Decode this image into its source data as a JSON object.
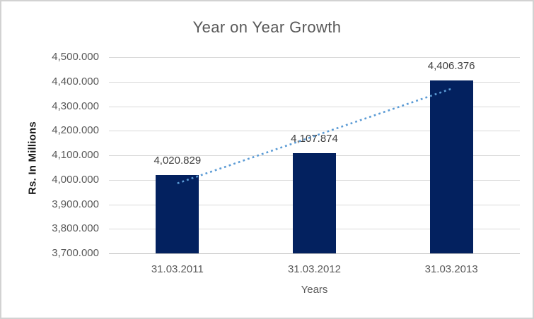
{
  "chart_data": {
    "type": "bar",
    "title": "Year on Year Growth",
    "xlabel": "Years",
    "ylabel": "Rs. In Millions",
    "categories": [
      "31.03.2011",
      "31.03.2012",
      "31.03.2013"
    ],
    "values": [
      4020.829,
      4107.874,
      4406.376
    ],
    "value_labels": [
      "4,020.829",
      "4,107.874",
      "4,406.376"
    ],
    "ylim": [
      3700,
      4500
    ],
    "ytick_step": 100,
    "ytick_labels": [
      "3,700.000",
      "3,800.000",
      "3,900.000",
      "4,000.000",
      "4,100.000",
      "4,200.000",
      "4,300.000",
      "4,400.000",
      "4,500.000"
    ],
    "grid": true,
    "legend": "none",
    "trendline": {
      "type": "linear",
      "style": "dotted"
    },
    "colors": {
      "bar": "#03215f",
      "trendline": "#5b9bd5",
      "gridline": "#d9d9d9",
      "axis_line": "#c3c3c3",
      "title_text": "#595959",
      "tick_text": "#595959",
      "data_label_text": "#404040",
      "axis_title_text": "#1a1a1a",
      "border": "#d2d2d2"
    }
  }
}
